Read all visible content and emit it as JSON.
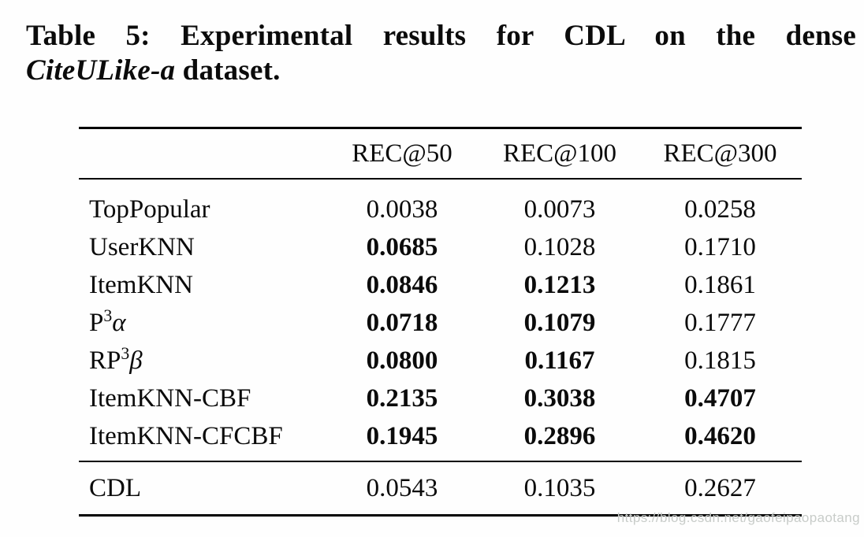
{
  "caption": {
    "line1": "Table 5: Experimental results for CDL on the dense",
    "line2_italic": "CiteULike-a",
    "line2_rest": " dataset."
  },
  "table": {
    "columns": [
      "REC@50",
      "REC@100",
      "REC@300"
    ],
    "baseline_rows": [
      {
        "label": [
          {
            "text": "TopPopular"
          }
        ],
        "values": [
          {
            "text": "0.0038",
            "bold": false
          },
          {
            "text": "0.0073",
            "bold": false
          },
          {
            "text": "0.0258",
            "bold": false
          }
        ]
      },
      {
        "label": [
          {
            "text": "UserKNN"
          }
        ],
        "values": [
          {
            "text": "0.0685",
            "bold": true
          },
          {
            "text": "0.1028",
            "bold": false
          },
          {
            "text": "0.1710",
            "bold": false
          }
        ]
      },
      {
        "label": [
          {
            "text": "ItemKNN"
          }
        ],
        "values": [
          {
            "text": "0.0846",
            "bold": true
          },
          {
            "text": "0.1213",
            "bold": true
          },
          {
            "text": "0.1861",
            "bold": false
          }
        ]
      },
      {
        "label": [
          {
            "text": "P"
          },
          {
            "text": "3",
            "sup": true
          },
          {
            "text": "α",
            "italic": true
          }
        ],
        "values": [
          {
            "text": "0.0718",
            "bold": true
          },
          {
            "text": "0.1079",
            "bold": true
          },
          {
            "text": "0.1777",
            "bold": false
          }
        ]
      },
      {
        "label": [
          {
            "text": "RP"
          },
          {
            "text": "3",
            "sup": true
          },
          {
            "text": "β",
            "italic": true
          }
        ],
        "values": [
          {
            "text": "0.0800",
            "bold": true
          },
          {
            "text": "0.1167",
            "bold": true
          },
          {
            "text": "0.1815",
            "bold": false
          }
        ]
      },
      {
        "label": [
          {
            "text": "ItemKNN-CBF"
          }
        ],
        "values": [
          {
            "text": "0.2135",
            "bold": true
          },
          {
            "text": "0.3038",
            "bold": true
          },
          {
            "text": "0.4707",
            "bold": true
          }
        ]
      },
      {
        "label": [
          {
            "text": "ItemKNN-CFCBF"
          }
        ],
        "values": [
          {
            "text": "0.1945",
            "bold": true
          },
          {
            "text": "0.2896",
            "bold": true
          },
          {
            "text": "0.4620",
            "bold": true
          }
        ]
      }
    ],
    "cdl_rows": [
      {
        "label": [
          {
            "text": "CDL"
          }
        ],
        "values": [
          {
            "text": "0.0543",
            "bold": false
          },
          {
            "text": "0.1035",
            "bold": false
          },
          {
            "text": "0.2627",
            "bold": false
          }
        ]
      }
    ]
  },
  "watermark": {
    "text": "https://blog.csdn.net/gaofeipaopaotang",
    "color": "#c8ccc9"
  },
  "colors": {
    "background": "#fefefe",
    "text": "#0b0b0b",
    "rule": "#000000"
  }
}
